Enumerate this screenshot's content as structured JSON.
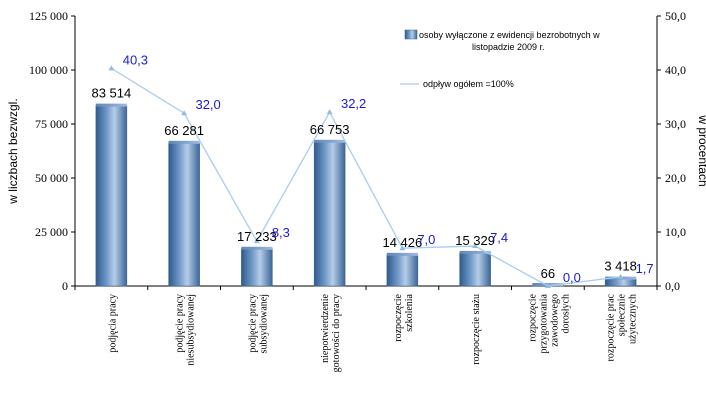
{
  "chart_data": {
    "type": "bar",
    "categories": [
      [
        "podjęcia pracy"
      ],
      [
        "podjęcie pracy",
        "niesubsydiowanej"
      ],
      [
        "podjęcie pracy",
        "subsydiowanej"
      ],
      [
        "niepotwierdzenie",
        "gotowości do pracy"
      ],
      [
        "rozpoczęcie",
        "szkolenia"
      ],
      [
        "rozpoczęcie stażu"
      ],
      [
        "rozpoczęcie",
        "przygotowania",
        "zawodowego",
        "dorosłych"
      ],
      [
        "rozpoczęcie prac",
        "społecznie",
        "użytecznych"
      ]
    ],
    "series": [
      {
        "name": "osoby wyłączone z ewidencji bezrobotnych w listopadzie 2009 r.",
        "type": "bar",
        "axis": "left",
        "values": [
          83514,
          66281,
          17233,
          66753,
          14426,
          15329,
          66,
          3418
        ],
        "labels": [
          "83 514",
          "66 281",
          "17 233",
          "66 753",
          "14 426",
          "15 329",
          "66",
          "3 418"
        ]
      },
      {
        "name": "odpływ ogółem =100%",
        "type": "line",
        "axis": "right",
        "values": [
          40.3,
          32.0,
          8.3,
          32.2,
          7.0,
          7.4,
          0.0,
          1.7
        ],
        "labels": [
          "40,3",
          "32,0",
          "8,3",
          "32,2",
          "7,0",
          "7,4",
          "0,0",
          "1,7"
        ]
      }
    ],
    "ylabel": "w liczbach bezwzgl.",
    "y2label": "w procentach",
    "ylim": [
      0,
      125000
    ],
    "y2lim": [
      0,
      50
    ],
    "yticks": [
      "0",
      "25 000",
      "50 000",
      "75 000",
      "100 000",
      "125 000"
    ],
    "y2ticks": [
      "0,0",
      "10,0",
      "20,0",
      "30,0",
      "40,0",
      "50,0"
    ],
    "legend": {
      "position": "top-right",
      "bar_lines": [
        "osoby wyłączone  z ewidencji  bezrobotnych   w",
        "listopadzie 2009  r."
      ],
      "line_text": "odpływ ogółem =100%"
    },
    "grid": false,
    "colors": {
      "bar_dark": "#2f5a8c",
      "bar_light": "#b6cde8",
      "line": "#a9cdef",
      "pct_text": "#1a1adb"
    }
  }
}
